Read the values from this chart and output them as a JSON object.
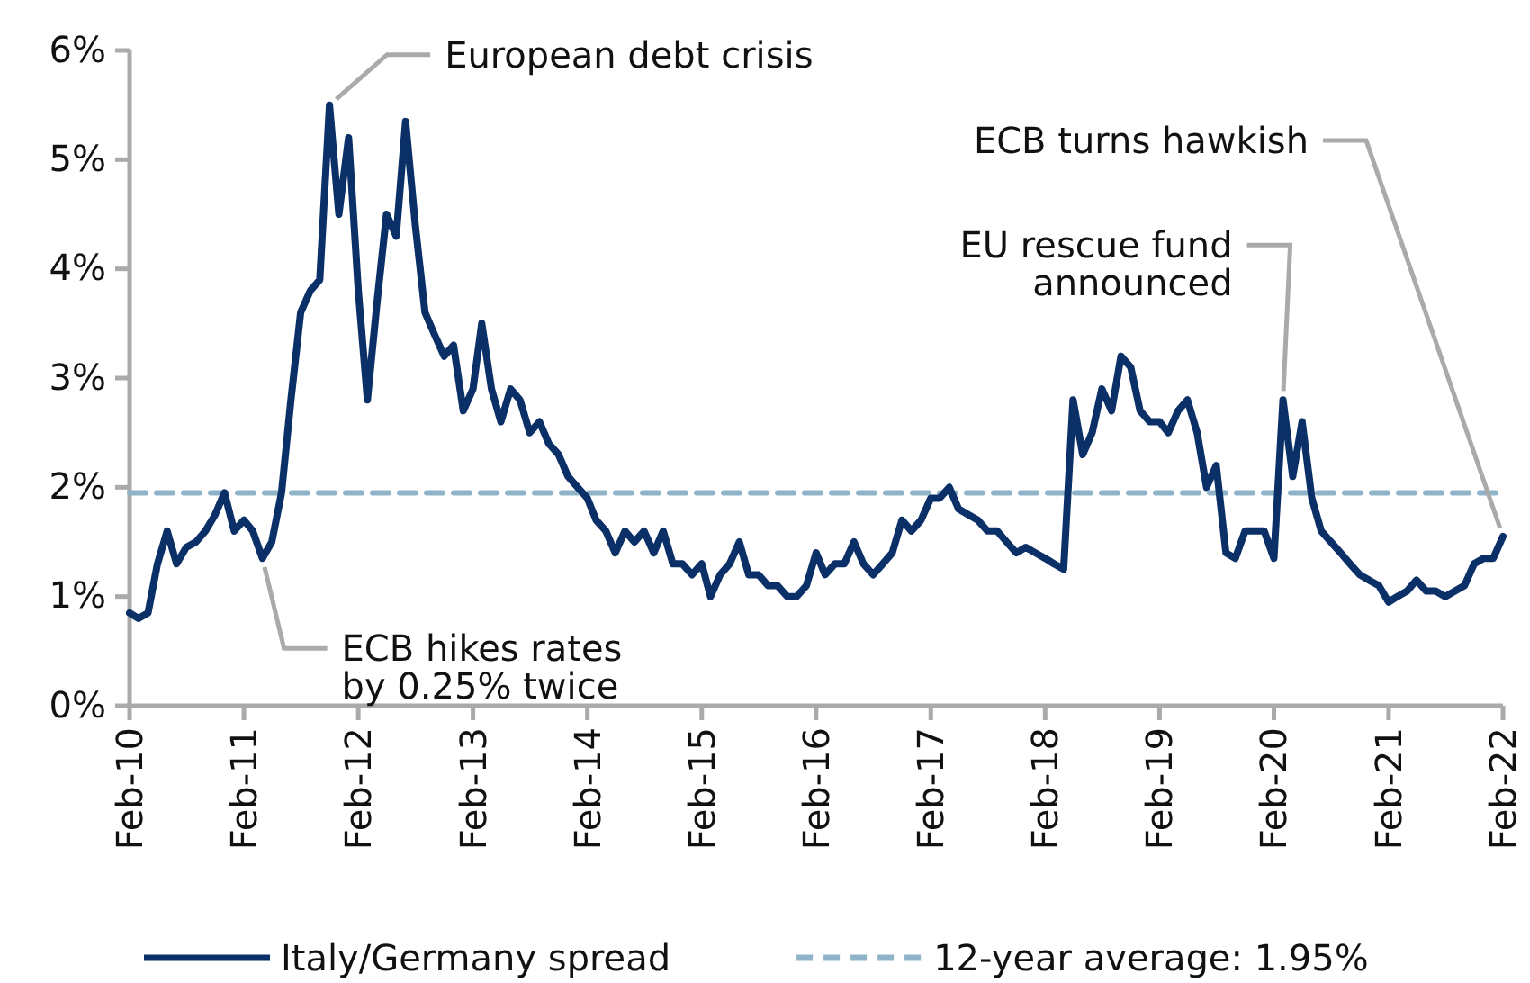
{
  "chart_data": {
    "type": "line",
    "xlim": [
      "2010-02",
      "2022-02"
    ],
    "xticks": [
      {
        "value": "2010-02",
        "label": "Feb-10"
      },
      {
        "value": "2011-02",
        "label": "Feb-11"
      },
      {
        "value": "2012-02",
        "label": "Feb-12"
      },
      {
        "value": "2013-02",
        "label": "Feb-13"
      },
      {
        "value": "2014-02",
        "label": "Feb-14"
      },
      {
        "value": "2015-02",
        "label": "Feb-15"
      },
      {
        "value": "2016-02",
        "label": "Feb-16"
      },
      {
        "value": "2017-02",
        "label": "Feb-17"
      },
      {
        "value": "2018-02",
        "label": "Feb-18"
      },
      {
        "value": "2019-02",
        "label": "Feb-19"
      },
      {
        "value": "2020-02",
        "label": "Feb-20"
      },
      {
        "value": "2021-02",
        "label": "Feb-21"
      },
      {
        "value": "2022-02",
        "label": "Feb-22"
      }
    ],
    "ylim": [
      0,
      6
    ],
    "yticks": [
      {
        "value": 0,
        "label": "0%"
      },
      {
        "value": 1,
        "label": "1%"
      },
      {
        "value": 2,
        "label": "2%"
      },
      {
        "value": 3,
        "label": "3%"
      },
      {
        "value": 4,
        "label": "4%"
      },
      {
        "value": 5,
        "label": "5%"
      },
      {
        "value": 6,
        "label": "6%"
      }
    ],
    "grid": false,
    "legend": "bottom",
    "series": [
      {
        "name": "Italy/Germany spread",
        "color": "#0b3068",
        "line_style": "solid",
        "x": [
          "2010-02",
          "2010-03",
          "2010-04",
          "2010-05",
          "2010-06",
          "2010-07",
          "2010-08",
          "2010-09",
          "2010-10",
          "2010-11",
          "2010-12",
          "2011-01",
          "2011-02",
          "2011-03",
          "2011-04",
          "2011-05",
          "2011-06",
          "2011-07",
          "2011-08",
          "2011-09",
          "2011-10",
          "2011-11",
          "2011-12",
          "2012-01",
          "2012-02",
          "2012-03",
          "2012-04",
          "2012-05",
          "2012-06",
          "2012-07",
          "2012-08",
          "2012-09",
          "2012-10",
          "2012-11",
          "2012-12",
          "2013-01",
          "2013-02",
          "2013-03",
          "2013-04",
          "2013-05",
          "2013-06",
          "2013-07",
          "2013-08",
          "2013-09",
          "2013-10",
          "2013-11",
          "2013-12",
          "2014-01",
          "2014-02",
          "2014-03",
          "2014-04",
          "2014-05",
          "2014-06",
          "2014-07",
          "2014-08",
          "2014-09",
          "2014-10",
          "2014-11",
          "2014-12",
          "2015-01",
          "2015-02",
          "2015-03",
          "2015-04",
          "2015-05",
          "2015-06",
          "2015-07",
          "2015-08",
          "2015-09",
          "2015-10",
          "2015-11",
          "2015-12",
          "2016-01",
          "2016-02",
          "2016-03",
          "2016-04",
          "2016-05",
          "2016-06",
          "2016-07",
          "2016-08",
          "2016-09",
          "2016-10",
          "2016-11",
          "2016-12",
          "2017-01",
          "2017-02",
          "2017-03",
          "2017-04",
          "2017-05",
          "2017-06",
          "2017-07",
          "2017-08",
          "2017-09",
          "2017-10",
          "2017-11",
          "2017-12",
          "2018-01",
          "2018-02",
          "2018-03",
          "2018-04",
          "2018-05",
          "2018-06",
          "2018-07",
          "2018-08",
          "2018-09",
          "2018-10",
          "2018-11",
          "2018-12",
          "2019-01",
          "2019-02",
          "2019-03",
          "2019-04",
          "2019-05",
          "2019-06",
          "2019-07",
          "2019-08",
          "2019-09",
          "2019-10",
          "2019-11",
          "2019-12",
          "2020-01",
          "2020-02",
          "2020-03",
          "2020-04",
          "2020-05",
          "2020-06",
          "2020-07",
          "2020-08",
          "2020-09",
          "2020-10",
          "2020-11",
          "2020-12",
          "2021-01",
          "2021-02",
          "2021-03",
          "2021-04",
          "2021-05",
          "2021-06",
          "2021-07",
          "2021-08",
          "2021-09",
          "2021-10",
          "2021-11",
          "2021-12",
          "2022-01",
          "2022-02"
        ],
        "values": [
          0.85,
          0.8,
          0.85,
          1.3,
          1.6,
          1.3,
          1.45,
          1.5,
          1.6,
          1.75,
          1.95,
          1.6,
          1.7,
          1.6,
          1.35,
          1.5,
          1.95,
          2.8,
          3.6,
          3.8,
          3.9,
          5.5,
          4.5,
          5.2,
          3.8,
          2.8,
          3.7,
          4.5,
          4.3,
          5.35,
          4.4,
          3.6,
          3.4,
          3.2,
          3.3,
          2.7,
          2.9,
          3.5,
          2.9,
          2.6,
          2.9,
          2.8,
          2.5,
          2.6,
          2.4,
          2.3,
          2.1,
          2.0,
          1.9,
          1.7,
          1.6,
          1.4,
          1.6,
          1.5,
          1.6,
          1.4,
          1.6,
          1.3,
          1.3,
          1.2,
          1.3,
          1.0,
          1.2,
          1.3,
          1.5,
          1.2,
          1.2,
          1.1,
          1.1,
          1.0,
          1.0,
          1.1,
          1.4,
          1.2,
          1.3,
          1.3,
          1.5,
          1.3,
          1.2,
          1.3,
          1.4,
          1.7,
          1.6,
          1.7,
          1.9,
          1.9,
          2.0,
          1.8,
          1.75,
          1.7,
          1.6,
          1.6,
          1.5,
          1.4,
          1.45,
          1.4,
          1.35,
          1.3,
          1.25,
          2.8,
          2.3,
          2.5,
          2.9,
          2.7,
          3.2,
          3.1,
          2.7,
          2.6,
          2.6,
          2.5,
          2.7,
          2.8,
          2.5,
          2.0,
          2.2,
          1.4,
          1.35,
          1.6,
          1.6,
          1.6,
          1.35,
          2.8,
          2.1,
          2.6,
          1.9,
          1.6,
          1.5,
          1.4,
          1.3,
          1.2,
          1.15,
          1.1,
          0.95,
          1.0,
          1.05,
          1.15,
          1.05,
          1.05,
          1.0,
          1.05,
          1.1,
          1.3,
          1.35,
          1.35,
          1.55
        ]
      },
      {
        "name": "12-year average: 1.95%",
        "color": "#8fb3c8",
        "line_style": "dashed",
        "x": [
          "2010-02",
          "2022-02"
        ],
        "values": [
          1.95,
          1.95
        ]
      }
    ],
    "annotations": [
      {
        "text": "European debt crisis",
        "x": "2011-11",
        "y": 5.5
      },
      {
        "text": "ECB hikes rates\nby 0.25% twice",
        "x": "2011-04",
        "y": 1.35
      },
      {
        "text": "EU rescue fund\nannounced",
        "x": "2020-03",
        "y": 2.8
      },
      {
        "text": "ECB turns hawkish",
        "x": "2022-02",
        "y": 1.55
      }
    ]
  }
}
